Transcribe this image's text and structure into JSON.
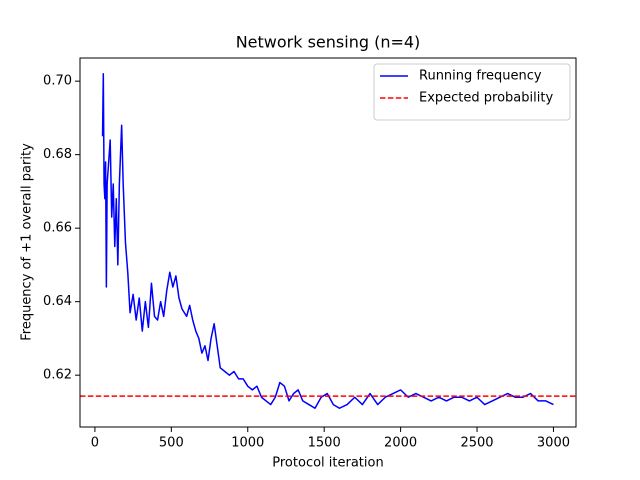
{
  "chart_data": {
    "type": "line",
    "title": "Network sensing (n=4)",
    "x_label": "Protocol iteration",
    "y_label": "Frequency of +1 overall parity",
    "xlim": [
      -97.5,
      3147.5
    ],
    "ylim": [
      0.6059,
      0.7063
    ],
    "xticks": [
      0,
      500,
      1000,
      1500,
      2000,
      2500,
      3000
    ],
    "yticks": [
      0.62,
      0.64,
      0.66,
      0.68,
      {
        "value": 0.7,
        "label": "0.70"
      }
    ],
    "legend": "upper right",
    "series": [
      {
        "name": "Running frequency",
        "color": "#0000ff",
        "x": [
          50,
          55,
          60,
          65,
          70,
          75,
          80,
          90,
          100,
          110,
          120,
          130,
          140,
          150,
          160,
          175,
          185,
          200,
          215,
          230,
          250,
          270,
          290,
          310,
          330,
          350,
          370,
          390,
          410,
          430,
          450,
          470,
          490,
          510,
          530,
          550,
          570,
          600,
          620,
          640,
          660,
          680,
          700,
          720,
          740,
          760,
          780,
          800,
          820,
          850,
          880,
          910,
          940,
          970,
          1000,
          1030,
          1060,
          1090,
          1120,
          1150,
          1180,
          1210,
          1240,
          1270,
          1300,
          1330,
          1360,
          1400,
          1440,
          1480,
          1520,
          1560,
          1600,
          1650,
          1700,
          1750,
          1800,
          1850,
          1900,
          1950,
          2000,
          2050,
          2100,
          2150,
          2200,
          2250,
          2300,
          2350,
          2400,
          2450,
          2500,
          2550,
          2600,
          2650,
          2700,
          2750,
          2800,
          2850,
          2900,
          2950,
          3000
        ],
        "values": [
          0.685,
          0.702,
          0.672,
          0.668,
          0.678,
          0.644,
          0.672,
          0.678,
          0.684,
          0.663,
          0.672,
          0.655,
          0.668,
          0.65,
          0.672,
          0.688,
          0.672,
          0.656,
          0.648,
          0.637,
          0.642,
          0.635,
          0.641,
          0.632,
          0.64,
          0.633,
          0.645,
          0.636,
          0.635,
          0.64,
          0.636,
          0.643,
          0.648,
          0.644,
          0.647,
          0.641,
          0.638,
          0.636,
          0.639,
          0.635,
          0.632,
          0.63,
          0.626,
          0.628,
          0.624,
          0.63,
          0.634,
          0.628,
          0.622,
          0.621,
          0.62,
          0.621,
          0.619,
          0.619,
          0.617,
          0.616,
          0.617,
          0.614,
          0.613,
          0.612,
          0.614,
          0.618,
          0.617,
          0.613,
          0.615,
          0.616,
          0.613,
          0.612,
          0.611,
          0.614,
          0.615,
          0.612,
          0.611,
          0.612,
          0.614,
          0.612,
          0.615,
          0.612,
          0.614,
          0.615,
          0.616,
          0.614,
          0.615,
          0.614,
          0.613,
          0.614,
          0.613,
          0.614,
          0.614,
          0.613,
          0.614,
          0.612,
          0.613,
          0.614,
          0.615,
          0.614,
          0.614,
          0.615,
          0.613,
          0.613,
          0.612
        ]
      },
      {
        "name": "Expected probability",
        "color": "#ff0000",
        "dashed": true,
        "hline": 0.6143
      }
    ]
  }
}
